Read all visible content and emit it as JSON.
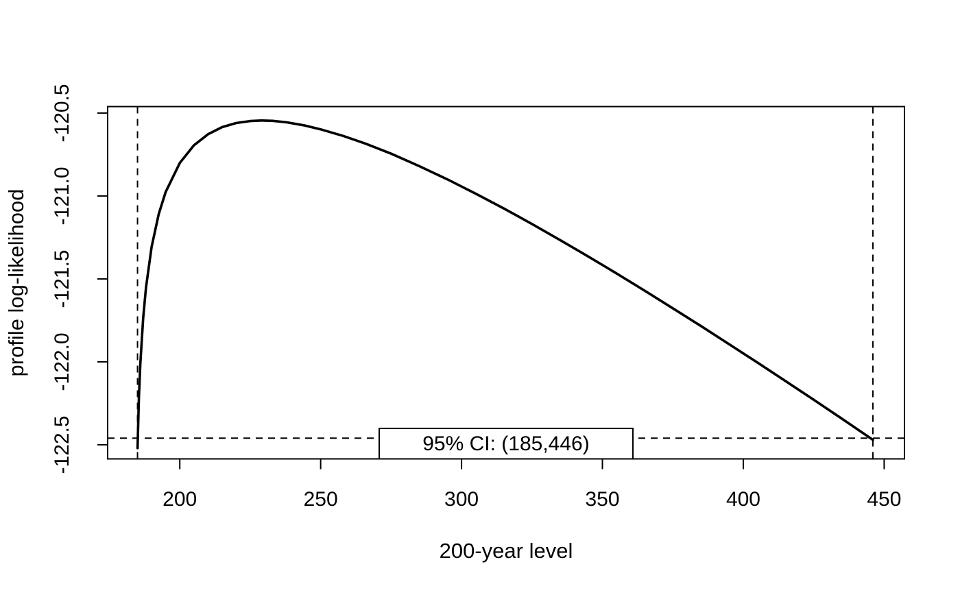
{
  "figure": {
    "background": "#ffffff",
    "foreground": "#000000"
  },
  "chart_data": {
    "type": "line",
    "title": "",
    "xlabel": "200-year level",
    "ylabel": "profile log-likelihood",
    "xlim": [
      174.4,
      457.2
    ],
    "ylim": [
      -122.585,
      -120.461
    ],
    "x_ticks": [
      200,
      250,
      300,
      350,
      400,
      450
    ],
    "x_tick_labels": [
      "200",
      "250",
      "300",
      "350",
      "400",
      "450"
    ],
    "y_ticks": [
      -122.5,
      -122.0,
      -121.5,
      -121.0,
      -120.5
    ],
    "y_tick_labels": [
      "-122.5",
      "-122.0",
      "-121.5",
      "-121.0",
      "-120.5"
    ],
    "grid": false,
    "legend": {
      "label": "95% CI: (185,446)",
      "position": "bottom-center"
    },
    "annotations": {
      "ci_level": "95%",
      "ci_lower": 185,
      "ci_upper": 446,
      "dashed_vlines_x": [
        185,
        446
      ],
      "dashed_hline_y": -122.46,
      "max_loglik": -120.545,
      "max_at_level": 229,
      "line_style": "dashed"
    },
    "series": [
      {
        "name": "profile log-likelihood",
        "color": "#000000",
        "style": "solid",
        "x": [
          185,
          185.5,
          186,
          187,
          188,
          190,
          192.5,
          195,
          200,
          205,
          210,
          215,
          220,
          225,
          229,
          233,
          238,
          244,
          250,
          258,
          266,
          275,
          285,
          295,
          305,
          315,
          325,
          335,
          345,
          355,
          365,
          375,
          385,
          395,
          405,
          415,
          425,
          435,
          446
        ],
        "y": [
          -122.52,
          -122.212,
          -122.008,
          -121.736,
          -121.552,
          -121.307,
          -121.11,
          -120.976,
          -120.801,
          -120.695,
          -120.628,
          -120.585,
          -120.56,
          -120.548,
          -120.545,
          -120.547,
          -120.556,
          -120.574,
          -120.598,
          -120.638,
          -120.685,
          -120.745,
          -120.82,
          -120.9,
          -120.986,
          -121.075,
          -121.169,
          -121.266,
          -121.365,
          -121.467,
          -121.571,
          -121.677,
          -121.784,
          -121.894,
          -122.004,
          -122.116,
          -122.229,
          -122.343,
          -122.47
        ]
      }
    ]
  }
}
